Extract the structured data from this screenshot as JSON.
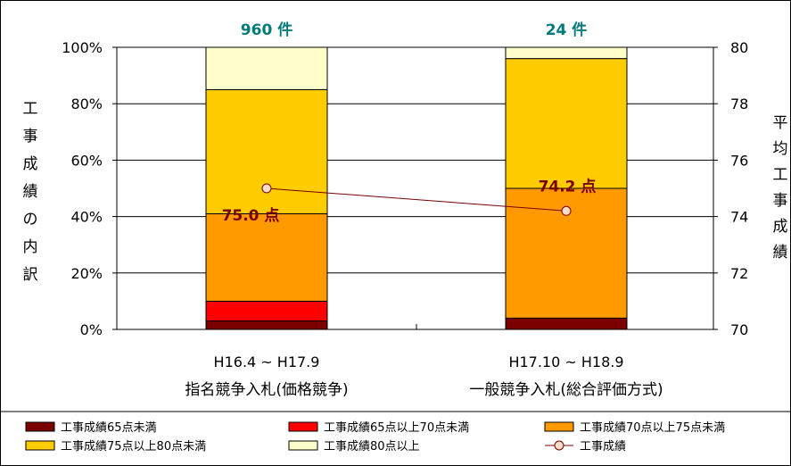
{
  "chart_data": {
    "type": "bar",
    "stacked": true,
    "categories": [
      {
        "line1": "H16.4 ~ H17.9",
        "line2": "指名競争入札(価格競争)"
      },
      {
        "line1": "H17.10 ~ H18.9",
        "line2": "一般競争入札(総合評価方式)"
      }
    ],
    "series": [
      {
        "name": "工事成績65点未満",
        "color": "#7a0000",
        "values": [
          3,
          4
        ]
      },
      {
        "name": "工事成績65点以上70点未満",
        "color": "#ff0000",
        "values": [
          7,
          0
        ]
      },
      {
        "name": "工事成績70点以上75点未満",
        "color": "#ff9900",
        "values": [
          31,
          46
        ]
      },
      {
        "name": "工事成績75点以上80点未満",
        "color": "#ffcc00",
        "values": [
          44,
          46
        ]
      },
      {
        "name": "工事成績80点以上",
        "color": "#ffffcc",
        "values": [
          15,
          4
        ]
      }
    ],
    "line_series": {
      "name": "工事成績",
      "axis": "right",
      "color": "#7a0000",
      "marker_fill": "#ffddc8",
      "values": [
        75.0,
        74.2
      ],
      "labels": [
        "75.0 点",
        "74.2 点"
      ]
    },
    "counts": [
      "960 件",
      "24 件"
    ],
    "y_left": {
      "label": "工事成績の内訳",
      "ticks": [
        "0%",
        "20%",
        "40%",
        "60%",
        "80%",
        "100%"
      ],
      "range": [
        0,
        100
      ]
    },
    "y_right": {
      "label": "平均工事成績",
      "ticks": [
        "70",
        "72",
        "74",
        "76",
        "78",
        "80"
      ],
      "range": [
        70,
        80
      ]
    },
    "grid": true,
    "legend_position": "bottom"
  }
}
